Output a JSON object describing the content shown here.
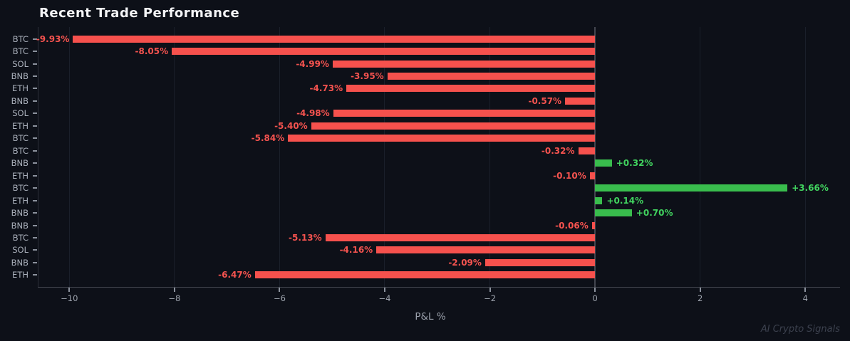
{
  "watermark": "AI Crypto Signals",
  "chart_data": {
    "type": "bar",
    "orientation": "horizontal",
    "title": "Recent Trade Performance",
    "xlabel": "P&L %",
    "ylabel": "",
    "categories": [
      "BTC",
      "BTC",
      "SOL",
      "BNB",
      "ETH",
      "BNB",
      "SOL",
      "ETH",
      "BTC",
      "BTC",
      "BNB",
      "ETH",
      "BTC",
      "ETH",
      "BNB",
      "BNB",
      "BTC",
      "SOL",
      "BNB",
      "ETH"
    ],
    "values": [
      -9.93,
      -8.05,
      -4.99,
      -3.95,
      -4.73,
      -0.57,
      -4.98,
      -5.4,
      -5.84,
      -0.32,
      0.32,
      -0.1,
      3.66,
      0.14,
      0.7,
      -0.06,
      -5.13,
      -4.16,
      -2.09,
      -6.47
    ],
    "value_labels": [
      "-9.93%",
      "-8.05%",
      "-4.99%",
      "-3.95%",
      "-4.73%",
      "-0.57%",
      "-4.98%",
      "-5.40%",
      "-5.84%",
      "-0.32%",
      "+0.32%",
      "-0.10%",
      "+3.66%",
      "+0.14%",
      "+0.70%",
      "-0.06%",
      "-5.13%",
      "-4.16%",
      "-2.09%",
      "-6.47%"
    ],
    "xticks": [
      -10,
      -8,
      -6,
      -4,
      -2,
      0,
      2,
      4
    ],
    "xtick_labels": [
      "−10",
      "−8",
      "−6",
      "−4",
      "−2",
      "0",
      "2",
      "4"
    ],
    "xlim": [
      -10.6,
      4.66
    ],
    "grid": "vertical",
    "legend": "none",
    "colors": {
      "background": "#0d1018",
      "negative_bar": "#f6514d",
      "positive_bar": "#39bd4d",
      "negative_label": "#f5534f",
      "positive_label": "#41d35f"
    }
  }
}
